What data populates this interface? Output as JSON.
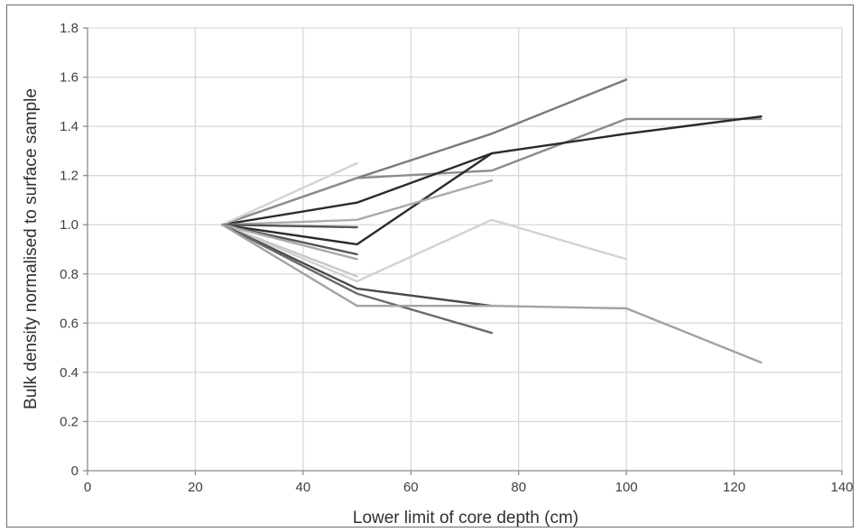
{
  "chart_data": {
    "type": "line",
    "title": "",
    "xlabel": "Lower limit of core depth (cm)",
    "ylabel": "Bulk density normalised to surface sample",
    "xlim": [
      0,
      140
    ],
    "ylim": [
      0,
      1.8
    ],
    "x_ticks": [
      "0",
      "20",
      "40",
      "60",
      "80",
      "100",
      "120",
      "140"
    ],
    "y_ticks": [
      "0",
      "0.2",
      "0.4",
      "0.6",
      "0.8",
      "1.0",
      "1.2",
      "1.4",
      "1.6",
      "1.8"
    ],
    "grid": true,
    "legend": "none",
    "series": [
      {
        "color": "#7a7a7a",
        "points": [
          [
            25,
            1.0
          ],
          [
            50,
            1.19
          ],
          [
            75,
            1.37
          ],
          [
            100,
            1.59
          ]
        ]
      },
      {
        "color": "#8c8c8c",
        "points": [
          [
            25,
            1.0
          ],
          [
            50,
            1.19
          ],
          [
            75,
            1.22
          ],
          [
            100,
            1.43
          ],
          [
            125,
            1.43
          ]
        ]
      },
      {
        "color": "#2a2a2a",
        "points": [
          [
            25,
            1.0
          ],
          [
            50,
            1.09
          ],
          [
            75,
            1.29
          ],
          [
            100,
            1.37
          ],
          [
            125,
            1.44
          ]
        ]
      },
      {
        "color": "#2a2a2a",
        "points": [
          [
            25,
            1.0
          ],
          [
            50,
            0.92
          ],
          [
            75,
            1.29
          ]
        ]
      },
      {
        "color": "#d2d2d2",
        "points": [
          [
            25,
            1.0
          ],
          [
            50,
            1.25
          ]
        ]
      },
      {
        "color": "#ababab",
        "points": [
          [
            25,
            1.0
          ],
          [
            50,
            1.02
          ],
          [
            75,
            1.18
          ]
        ]
      },
      {
        "color": "#d2d2d2",
        "points": [
          [
            25,
            1.0
          ],
          [
            50,
            0.77
          ],
          [
            75,
            1.02
          ],
          [
            100,
            0.86
          ]
        ]
      },
      {
        "color": "#555555",
        "points": [
          [
            25,
            1.0
          ],
          [
            50,
            0.99
          ]
        ]
      },
      {
        "color": "#555555",
        "points": [
          [
            25,
            1.0
          ],
          [
            50,
            0.88
          ]
        ]
      },
      {
        "color": "#a9a9a9",
        "points": [
          [
            25,
            1.0
          ],
          [
            50,
            0.86
          ]
        ]
      },
      {
        "color": "#c8c8c8",
        "points": [
          [
            25,
            1.0
          ],
          [
            50,
            0.79
          ]
        ]
      },
      {
        "color": "#4a4a4a",
        "points": [
          [
            25,
            1.0
          ],
          [
            50,
            0.74
          ],
          [
            75,
            0.67
          ]
        ]
      },
      {
        "color": "#6a6a6a",
        "points": [
          [
            25,
            1.0
          ],
          [
            50,
            0.72
          ],
          [
            75,
            0.56
          ]
        ]
      },
      {
        "color": "#a2a2a2",
        "points": [
          [
            25,
            1.0
          ],
          [
            50,
            0.67
          ],
          [
            75,
            0.67
          ],
          [
            100,
            0.66
          ],
          [
            125,
            0.44
          ]
        ]
      }
    ]
  }
}
